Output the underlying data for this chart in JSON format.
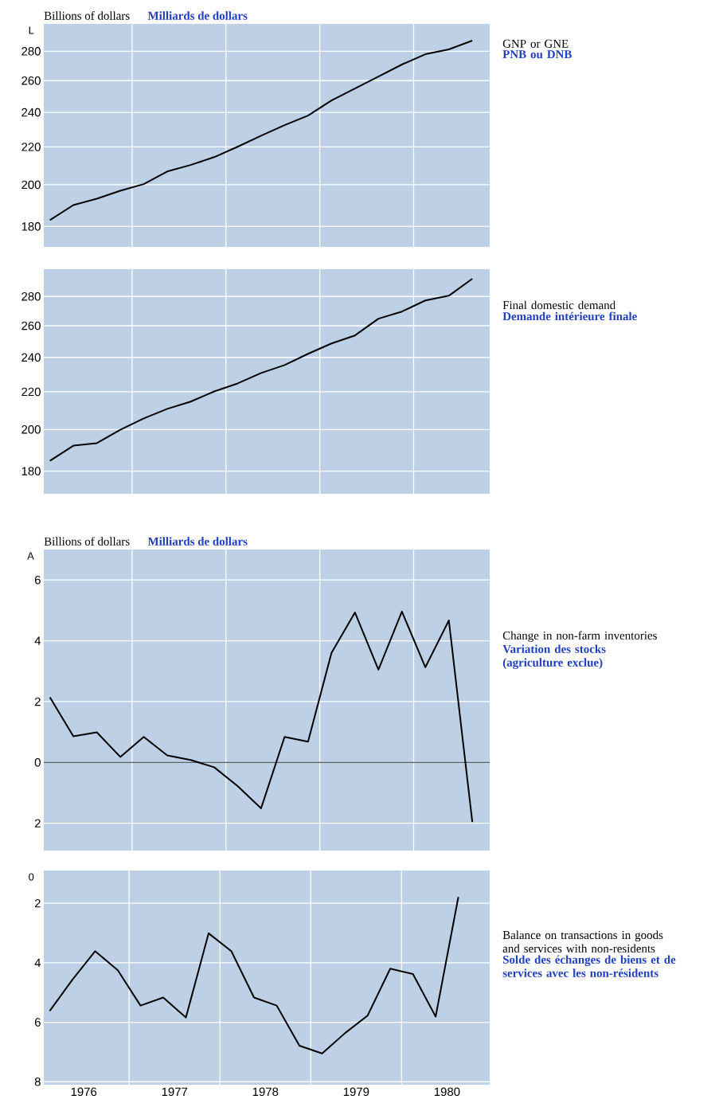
{
  "chart_data": [
    {
      "type": "line",
      "ylabel": "Billions of dollars",
      "subtitle": "Milliards de dollars",
      "annotations": [
        "PNB ou DNB",
        "L"
      ],
      "log": "y",
      "grid": true,
      "categories": [
        null,
        null,
        null,
        null,
        null,
        null,
        null,
        null,
        null,
        null,
        null,
        null,
        null,
        null,
        null,
        null,
        null,
        null,
        null
      ],
      "ylim": [
        171,
        300
      ],
      "yticks": [
        180,
        200,
        220,
        240,
        260,
        280
      ],
      "series": [
        {
          "name": "GNP or GNE",
          "color": "#000000",
          "values": [
            182.9,
            190.0,
            193.1,
            197.0,
            200.3,
            206.8,
            210.2,
            214.4,
            220.1,
            226.3,
            232.4,
            238.1,
            247.3,
            254.9,
            262.7,
            270.8,
            277.9,
            281.3,
            287.6
          ]
        }
      ]
    },
    {
      "type": "line",
      "annotations": [
        "Demande intérieure finale"
      ],
      "log": "y",
      "grid": true,
      "categories": [
        null,
        null,
        null,
        null,
        null,
        null,
        null,
        null,
        null,
        null,
        null,
        null,
        null,
        null,
        null,
        null,
        null,
        null,
        null
      ],
      "ylim": [
        170,
        300
      ],
      "yticks": [
        180,
        200,
        220,
        240,
        260,
        280
      ],
      "series": [
        {
          "name": "Final domestic demand",
          "color": "#000000",
          "values": [
            184.8,
            192.0,
            193.2,
            199.9,
            205.7,
            210.7,
            214.6,
            220.2,
            224.7,
            230.7,
            235.4,
            242.2,
            248.6,
            253.7,
            264.7,
            269.5,
            277.2,
            280.5,
            292.8
          ]
        }
      ]
    },
    {
      "type": "line",
      "ylabel": "Billions of dollars",
      "subtitle": "Milliards de dollars",
      "annotations": [
        "Variation des stocks (agriculture exclue)",
        "A"
      ],
      "grid": true,
      "categories": [
        null,
        null,
        null,
        null,
        null,
        null,
        null,
        null,
        null,
        null,
        null,
        null,
        null,
        null,
        null,
        null,
        null,
        null,
        null
      ],
      "ylim": [
        -2.9,
        7
      ],
      "yticks": [
        {
          "value": -2,
          "label": "2"
        },
        0,
        2,
        4,
        6
      ],
      "ref_lines": [
        {
          "axis": "y",
          "value": 0,
          "color": "#000000"
        }
      ],
      "series": [
        {
          "name": "Change in non-farm inventories",
          "color": "#000000",
          "values": [
            2.14,
            0.86,
            0.99,
            0.18,
            0.84,
            0.23,
            0.08,
            -0.16,
            -0.78,
            -1.51,
            0.84,
            0.68,
            3.6,
            4.93,
            3.05,
            4.96,
            3.13,
            4.67,
            -1.96
          ]
        }
      ]
    },
    {
      "type": "line",
      "annotations": [
        "Solde des échanges de biens et de services avec les non-résidents",
        "0"
      ],
      "grid": true,
      "x": [
        1976.125,
        1976.375,
        1976.625,
        1976.875,
        1977.125,
        1977.375,
        1977.625,
        1977.875,
        1978.125,
        1978.375,
        1978.625,
        1978.875,
        1979.125,
        1979.375,
        1979.625,
        1979.875,
        1980.125,
        1980.375,
        1980.625
      ],
      "xlim": [
        1976.06,
        1980.97
      ],
      "xticks": [
        {
          "value": 1976.5,
          "label": "1976"
        },
        {
          "value": 1977,
          "label": null
        },
        {
          "value": 1977.5,
          "label": "1977"
        },
        {
          "value": 1978,
          "label": null
        },
        {
          "value": 1978.5,
          "label": "1978"
        },
        {
          "value": 1979,
          "label": null
        },
        {
          "value": 1979.5,
          "label": "1979"
        },
        {
          "value": 1980,
          "label": null
        },
        {
          "value": 1980.5,
          "label": "1980"
        }
      ],
      "ylim": [
        -8.1,
        -0.9
      ],
      "yticks": [
        {
          "value": -8,
          "label": "8"
        },
        {
          "value": -6,
          "label": "6"
        },
        {
          "value": -4,
          "label": "4"
        },
        {
          "value": -2,
          "label": "2"
        }
      ],
      "series": [
        {
          "name": "Balance on transactions in goods and services with non-residents",
          "color": "#000000",
          "values": [
            -5.62,
            -4.57,
            -3.61,
            -4.25,
            -5.44,
            -5.17,
            -5.84,
            -3.01,
            -3.61,
            -5.17,
            -5.44,
            -6.79,
            -7.05,
            -6.37,
            -5.78,
            -4.2,
            -4.38,
            -5.81,
            -1.79
          ]
        }
      ]
    }
  ]
}
